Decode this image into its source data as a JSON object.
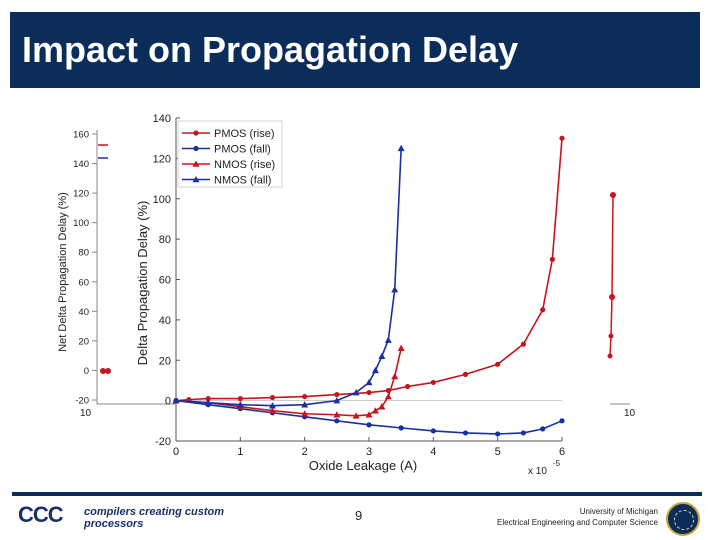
{
  "slide": {
    "title": "Impact on Propagation Delay",
    "page_number": "9",
    "logo_mark": "CCC",
    "logo_text": "compilers creating custom processors",
    "university_line1": "University of Michigan",
    "university_line2": "Electrical Engineering and Computer Science"
  },
  "colors": {
    "title_bar": "#0c2d59",
    "red_series": "#c8141e",
    "blue_series": "#1a2fa3"
  },
  "chart_data": [
    {
      "type": "line",
      "ylabel": "Delta Propagation Delay (%)",
      "xlabel": "Oxide Leakage (A)",
      "x_multiplier_label": "x 10",
      "x_multiplier_exponent": "-5",
      "xlim": [
        0,
        6
      ],
      "ylim": [
        -20,
        140
      ],
      "xticks": [
        "0",
        "1",
        "2",
        "3",
        "4",
        "5",
        "6"
      ],
      "yticks": [
        "-20",
        "0",
        "20",
        "40",
        "60",
        "80",
        "100",
        "120",
        "140"
      ],
      "legend_position": "top-left",
      "series": [
        {
          "name": "PMOS (rise)",
          "marker": "circle",
          "color": "#c8141e",
          "x": [
            0,
            0.2,
            0.5,
            1.0,
            1.5,
            2.0,
            2.5,
            3.0,
            3.3,
            3.6,
            4.0,
            4.5,
            5.0,
            5.4,
            5.7,
            5.85,
            6.0
          ],
          "y": [
            0,
            0.5,
            1,
            1,
            1.5,
            2,
            3,
            4,
            5,
            7,
            9,
            13,
            18,
            28,
            45,
            70,
            130
          ]
        },
        {
          "name": "PMOS (fall)",
          "marker": "circle",
          "color": "#1a2fa3",
          "x": [
            0,
            0.5,
            1.0,
            1.5,
            2.0,
            2.5,
            3.0,
            3.5,
            4.0,
            4.5,
            5.0,
            5.4,
            5.7,
            6.0
          ],
          "y": [
            0,
            -2,
            -4,
            -6,
            -8,
            -10,
            -12,
            -13.5,
            -15,
            -16,
            -16.5,
            -16,
            -14,
            -10
          ]
        },
        {
          "name": "NMOS (rise)",
          "marker": "triangle",
          "color": "#c8141e",
          "x": [
            0,
            0.5,
            1.0,
            1.5,
            2.0,
            2.5,
            2.8,
            3.0,
            3.1,
            3.2,
            3.3,
            3.4,
            3.5
          ],
          "y": [
            0,
            -1,
            -3,
            -5,
            -6.5,
            -7,
            -7.5,
            -7,
            -5,
            -3,
            2,
            12,
            26
          ]
        },
        {
          "name": "NMOS (fall)",
          "marker": "triangle",
          "color": "#1a2fa3",
          "x": [
            0,
            0.5,
            1.0,
            1.5,
            2.0,
            2.5,
            2.8,
            3.0,
            3.1,
            3.2,
            3.3,
            3.4,
            3.5
          ],
          "y": [
            0,
            -1,
            -2,
            -2.5,
            -2,
            0,
            4,
            9,
            15,
            22,
            30,
            55,
            125
          ]
        }
      ]
    },
    {
      "type": "line",
      "ylabel": "Net Delta Propagation Delay (%)",
      "ylim": [
        -20,
        160
      ],
      "yticks": [
        "-20",
        "0",
        "20",
        "40",
        "60",
        "80",
        "100",
        "120",
        "140",
        "160"
      ],
      "x_start_label": "10",
      "x_end_label": "10"
    }
  ]
}
